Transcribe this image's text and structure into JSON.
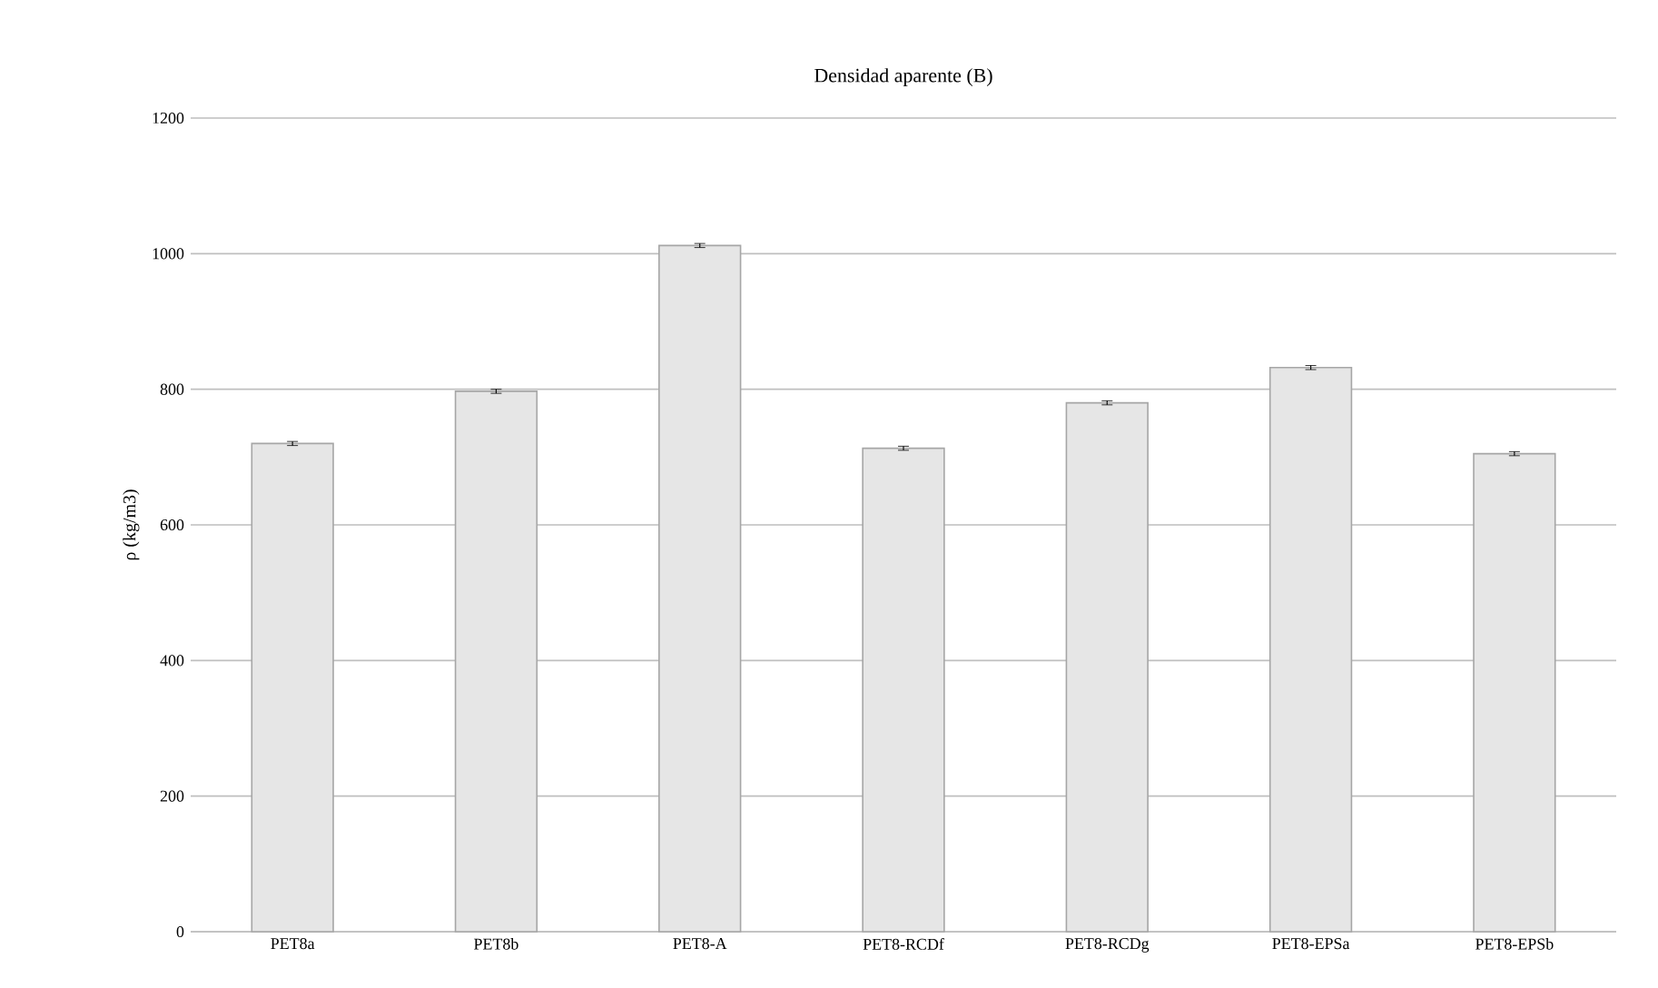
{
  "chart_data": {
    "type": "bar",
    "title": "Densidad aparente (B)",
    "ylabel": "ρ (kg/m3)",
    "categories": [
      "PET8a",
      "PET8b",
      "PET8-A",
      "PET8-RCDf",
      "PET8-RCDg",
      "PET8-EPSa",
      "PET8-EPSb"
    ],
    "values": [
      720,
      797,
      1012,
      713,
      780,
      832,
      705
    ],
    "errors": [
      3,
      3,
      3,
      3,
      3,
      3,
      3
    ],
    "color": "#e6e6e6",
    "ylim": [
      0,
      1200
    ],
    "yticks": [
      0,
      200,
      400,
      600,
      800,
      1000,
      1200
    ],
    "grid": "y"
  }
}
